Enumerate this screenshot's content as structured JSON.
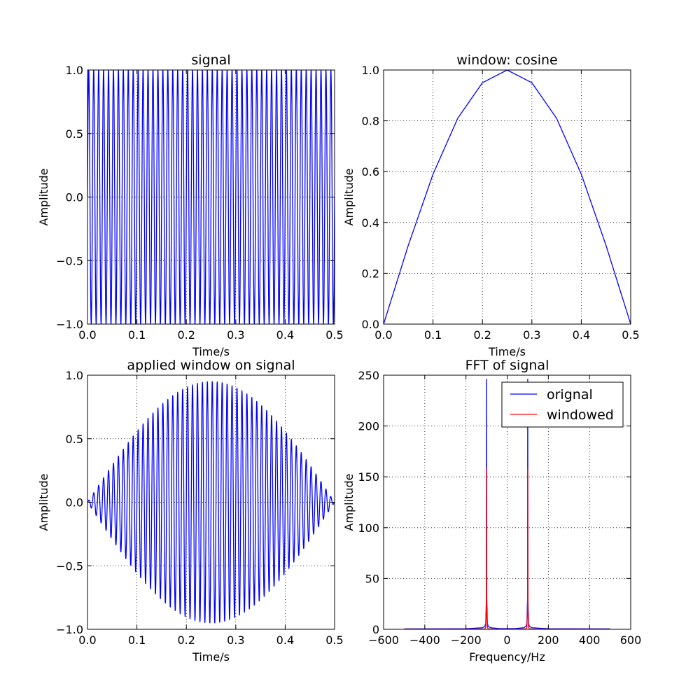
{
  "chart_data": [
    {
      "id": "signal",
      "type": "line",
      "title": "signal",
      "xlabel": "Time/s",
      "ylabel": "Amplitude",
      "xlim": [
        0.0,
        0.5
      ],
      "ylim": [
        -1.0,
        1.0
      ],
      "xticks": [
        "0.0",
        "0.1",
        "0.2",
        "0.3",
        "0.4",
        "0.5"
      ],
      "yticks": [
        "−1.0",
        "−0.5",
        "0.0",
        "0.5",
        "1.0"
      ],
      "grid": true,
      "series": [
        {
          "color": "#0000ff",
          "form": "sinusoid",
          "frequency_hz": 100,
          "amplitude": 1.0,
          "x_range": [
            0.0,
            0.5
          ]
        }
      ]
    },
    {
      "id": "window",
      "type": "line",
      "title": "window: cosine",
      "xlabel": "Time/s",
      "ylabel": "Amplitude",
      "xlim": [
        0.0,
        0.5
      ],
      "ylim": [
        0.0,
        1.0
      ],
      "xticks": [
        "0.0",
        "0.1",
        "0.2",
        "0.3",
        "0.4",
        "0.5"
      ],
      "yticks": [
        "0.0",
        "0.2",
        "0.4",
        "0.6",
        "0.8",
        "1.0"
      ],
      "grid": true,
      "series": [
        {
          "color": "#0000ff",
          "x": [
            0.0,
            0.05,
            0.1,
            0.15,
            0.2,
            0.25,
            0.3,
            0.35,
            0.4,
            0.45,
            0.5
          ],
          "y": [
            0.0,
            0.31,
            0.59,
            0.81,
            0.95,
            1.0,
            0.95,
            0.81,
            0.59,
            0.31,
            0.0
          ]
        }
      ]
    },
    {
      "id": "applied",
      "type": "line",
      "title": "applied window on signal",
      "xlabel": "Time/s",
      "ylabel": "Amplitude",
      "xlim": [
        0.0,
        0.5
      ],
      "ylim": [
        -1.0,
        1.0
      ],
      "xticks": [
        "0.0",
        "0.1",
        "0.2",
        "0.3",
        "0.4",
        "0.5"
      ],
      "yticks": [
        "−1.0",
        "−0.5",
        "0.0",
        "0.5",
        "1.0"
      ],
      "grid": true,
      "series": [
        {
          "color": "#0000ff",
          "form": "windowed sinusoid",
          "frequency_hz": 100,
          "envelope": "cosine",
          "x_range": [
            0.0,
            0.5
          ]
        }
      ]
    },
    {
      "id": "fft",
      "type": "line",
      "title": "FFT of signal",
      "xlabel": "Frequency/Hz",
      "ylabel": "Amplitude",
      "xlim": [
        -600,
        600
      ],
      "ylim": [
        0,
        250
      ],
      "xticks": [
        "−600",
        "−400",
        "−200",
        "0",
        "200",
        "400",
        "600"
      ],
      "yticks": [
        "0",
        "50",
        "100",
        "150",
        "200",
        "250"
      ],
      "grid": true,
      "legend_position": "top-right",
      "series": [
        {
          "name": "orignal",
          "color": "#0000ff",
          "x": [
            -500,
            -200,
            -120,
            -108,
            -104,
            -101,
            -100,
            -99,
            -96,
            -92,
            -80,
            -40,
            0,
            40,
            80,
            92,
            96,
            99,
            100,
            101,
            104,
            108,
            120,
            200,
            500
          ],
          "y": [
            0.4,
            0.6,
            1.5,
            3,
            6,
            30,
            246,
            30,
            6,
            3,
            1.5,
            0.8,
            0.7,
            0.8,
            1.5,
            3,
            6,
            30,
            246,
            30,
            6,
            3,
            1.5,
            0.6,
            0.4
          ]
        },
        {
          "name": "windowed",
          "color": "#ff0000",
          "x": [
            -500,
            -200,
            -120,
            -108,
            -104,
            -101,
            -100,
            -99,
            -96,
            -92,
            -80,
            -40,
            0,
            40,
            80,
            92,
            96,
            99,
            100,
            101,
            104,
            108,
            120,
            200,
            500
          ],
          "y": [
            0.1,
            0.1,
            0.2,
            0.5,
            2,
            20,
            158,
            20,
            2,
            0.5,
            0.2,
            0.1,
            0.1,
            0.1,
            0.2,
            0.5,
            2,
            20,
            158,
            20,
            2,
            0.5,
            0.2,
            0.1,
            0.1
          ]
        }
      ]
    }
  ]
}
